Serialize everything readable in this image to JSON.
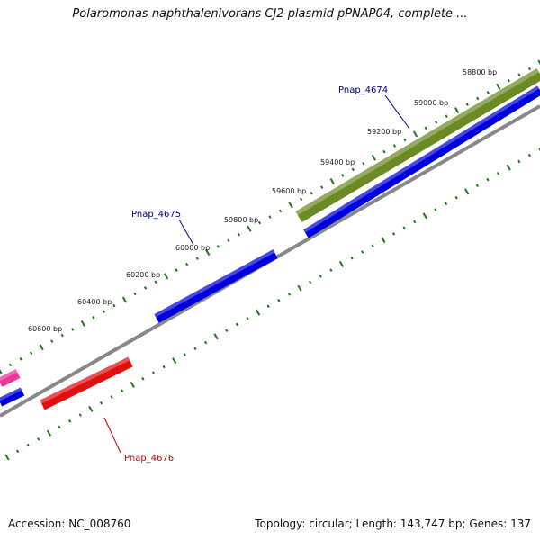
{
  "title": "Polaromonas naphthalenivorans CJ2 plasmid pPNAP04, complete ...",
  "footer": {
    "accession": "Accession: NC_008760",
    "summary": "Topology: circular; Length: 143,747 bp; Genes: 137"
  },
  "colors": {
    "tick": "#1a7a1a",
    "backbone": "#888888",
    "forward_gene": "#0000dd",
    "reverse_gene": "#e01010",
    "highlight_gene": "#6b8a23",
    "pink_gene": "#ee3399",
    "label_blue": "#000099",
    "label_red": "#cc0000"
  },
  "scale_labels": [
    "58800 bp",
    "59000 bp",
    "59200 bp",
    "59400 bp",
    "59600 bp",
    "59800 bp",
    "60000 bp",
    "60200 bp",
    "60400 bp",
    "60600 bp"
  ],
  "gene_labels": [
    {
      "name": "Pnap_4674",
      "color": "label_blue"
    },
    {
      "name": "Pnap_4675",
      "color": "label_blue"
    },
    {
      "name": "Pnap_4676",
      "color": "label_red"
    }
  ]
}
